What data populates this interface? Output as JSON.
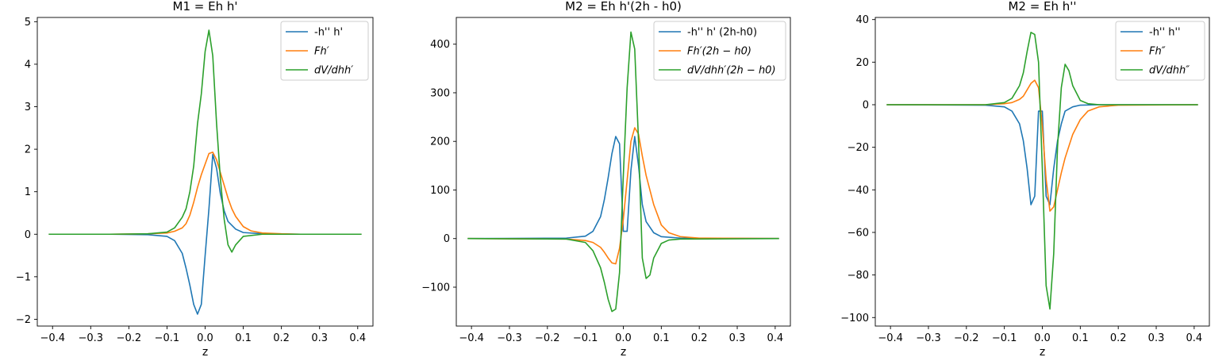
{
  "colors": {
    "series1": "#1f77b4",
    "series2": "#ff7f0e",
    "series3": "#2ca02c"
  },
  "chart_data": [
    {
      "type": "line",
      "title": "M1 = Eh h'",
      "xlabel": "z",
      "ylabel": "",
      "xlim": [
        -0.44,
        0.44
      ],
      "ylim": [
        -2.16,
        5.1
      ],
      "xticks": [
        -0.4,
        -0.3,
        -0.2,
        -0.1,
        0.0,
        0.1,
        0.2,
        0.3,
        0.4
      ],
      "xtick_labels": [
        "−0.4",
        "−0.3",
        "−0.2",
        "−0.1",
        "0.0",
        "0.1",
        "0.2",
        "0.3",
        "0.4"
      ],
      "yticks": [
        -2,
        -1,
        0,
        1,
        2,
        3,
        4,
        5
      ],
      "ytick_labels": [
        "−2",
        "−1",
        "0",
        "1",
        "2",
        "3",
        "4",
        "5"
      ],
      "legend_position": "top-right",
      "series": [
        {
          "name": "-h'' h'",
          "label_style": "plain",
          "x": [
            -0.41,
            -0.25,
            -0.15,
            -0.1,
            -0.08,
            -0.06,
            -0.05,
            -0.04,
            -0.03,
            -0.02,
            -0.01,
            0.0,
            0.01,
            0.02,
            0.03,
            0.04,
            0.05,
            0.06,
            0.08,
            0.1,
            0.15,
            0.25,
            0.41
          ],
          "y": [
            0,
            0,
            -0.01,
            -0.05,
            -0.15,
            -0.45,
            -0.8,
            -1.2,
            -1.65,
            -1.88,
            -1.65,
            -0.5,
            0.6,
            1.88,
            1.55,
            0.95,
            0.55,
            0.3,
            0.12,
            0.04,
            0.01,
            0,
            0
          ]
        },
        {
          "name": "Fh′",
          "label_style": "math",
          "x": [
            -0.41,
            -0.25,
            -0.15,
            -0.1,
            -0.08,
            -0.06,
            -0.05,
            -0.04,
            -0.03,
            -0.02,
            -0.01,
            0.0,
            0.01,
            0.02,
            0.03,
            0.04,
            0.05,
            0.06,
            0.07,
            0.08,
            0.1,
            0.12,
            0.15,
            0.2,
            0.25,
            0.41
          ],
          "y": [
            0,
            0,
            0.01,
            0.03,
            0.07,
            0.15,
            0.25,
            0.45,
            0.75,
            1.1,
            1.4,
            1.65,
            1.9,
            1.93,
            1.75,
            1.45,
            1.15,
            0.85,
            0.6,
            0.42,
            0.18,
            0.08,
            0.03,
            0.01,
            0,
            0
          ]
        },
        {
          "name": "dV/dhh′",
          "label_style": "math",
          "x": [
            -0.41,
            -0.25,
            -0.15,
            -0.1,
            -0.08,
            -0.06,
            -0.05,
            -0.04,
            -0.03,
            -0.02,
            -0.01,
            0.0,
            0.01,
            0.02,
            0.03,
            0.04,
            0.05,
            0.06,
            0.07,
            0.08,
            0.1,
            0.15,
            0.25,
            0.41
          ],
          "y": [
            0,
            0,
            0.01,
            0.05,
            0.15,
            0.4,
            0.6,
            1.0,
            1.6,
            2.6,
            3.3,
            4.3,
            4.8,
            4.2,
            2.6,
            1.3,
            0.35,
            -0.25,
            -0.42,
            -0.25,
            -0.05,
            0,
            0,
            0
          ]
        }
      ]
    },
    {
      "type": "line",
      "title": "M2 = Eh h'(2h - h0)",
      "xlabel": "z",
      "ylabel": "",
      "xlim": [
        -0.44,
        0.44
      ],
      "ylim": [
        -180,
        455
      ],
      "xticks": [
        -0.4,
        -0.3,
        -0.2,
        -0.1,
        0.0,
        0.1,
        0.2,
        0.3,
        0.4
      ],
      "xtick_labels": [
        "−0.4",
        "−0.3",
        "−0.2",
        "−0.1",
        "0.0",
        "0.1",
        "0.2",
        "0.3",
        "0.4"
      ],
      "yticks": [
        -100,
        0,
        100,
        200,
        300,
        400
      ],
      "ytick_labels": [
        "−100",
        "0",
        "100",
        "200",
        "300",
        "400"
      ],
      "legend_position": "top-right",
      "series": [
        {
          "name": "-h'' h' (2h-h0)",
          "label_style": "plain",
          "x": [
            -0.41,
            -0.15,
            -0.1,
            -0.08,
            -0.06,
            -0.05,
            -0.04,
            -0.03,
            -0.02,
            -0.01,
            0.0,
            0.01,
            0.02,
            0.03,
            0.04,
            0.05,
            0.06,
            0.08,
            0.1,
            0.15,
            0.41
          ],
          "y": [
            0,
            1,
            5,
            15,
            45,
            80,
            125,
            175,
            210,
            195,
            15,
            15,
            140,
            210,
            150,
            70,
            35,
            12,
            4,
            1,
            0
          ]
        },
        {
          "name": "Fh′(2h − h0)",
          "label_style": "math",
          "x": [
            -0.41,
            -0.15,
            -0.1,
            -0.08,
            -0.06,
            -0.05,
            -0.04,
            -0.03,
            -0.02,
            -0.01,
            0.0,
            0.01,
            0.02,
            0.03,
            0.04,
            0.05,
            0.06,
            0.08,
            0.1,
            0.12,
            0.15,
            0.2,
            0.41
          ],
          "y": [
            0,
            -1,
            -4,
            -8,
            -18,
            -28,
            -40,
            -50,
            -52,
            -20,
            40,
            120,
            200,
            228,
            215,
            170,
            130,
            70,
            28,
            12,
            4,
            1,
            0
          ]
        },
        {
          "name": "dV/dhh′(2h − h0)",
          "label_style": "math",
          "x": [
            -0.41,
            -0.15,
            -0.1,
            -0.08,
            -0.06,
            -0.05,
            -0.04,
            -0.03,
            -0.02,
            -0.01,
            0.0,
            0.01,
            0.02,
            0.03,
            0.04,
            0.05,
            0.06,
            0.07,
            0.08,
            0.1,
            0.12,
            0.15,
            0.41
          ],
          "y": [
            0,
            -1,
            -8,
            -25,
            -60,
            -90,
            -125,
            -150,
            -145,
            -70,
            130,
            310,
            425,
            390,
            200,
            -40,
            -82,
            -75,
            -40,
            -10,
            -3,
            -1,
            0
          ]
        }
      ]
    },
    {
      "type": "line",
      "title": "M2 = Eh h''",
      "xlabel": "z",
      "ylabel": "",
      "xlim": [
        -0.44,
        0.44
      ],
      "ylim": [
        -104,
        41
      ],
      "xticks": [
        -0.4,
        -0.3,
        -0.2,
        -0.1,
        0.0,
        0.1,
        0.2,
        0.3,
        0.4
      ],
      "xtick_labels": [
        "−0.4",
        "−0.3",
        "−0.2",
        "−0.1",
        "0.0",
        "0.1",
        "0.2",
        "0.3",
        "0.4"
      ],
      "yticks": [
        -100,
        -80,
        -60,
        -40,
        -20,
        0,
        20,
        40
      ],
      "ytick_labels": [
        "−100",
        "−80",
        "−60",
        "−40",
        "−20",
        "0",
        "20",
        "40"
      ],
      "legend_position": "top-right",
      "series": [
        {
          "name": "-h'' h''",
          "label_style": "plain",
          "x": [
            -0.41,
            -0.15,
            -0.1,
            -0.08,
            -0.06,
            -0.05,
            -0.04,
            -0.03,
            -0.02,
            -0.01,
            0.0,
            0.01,
            0.02,
            0.03,
            0.04,
            0.05,
            0.06,
            0.08,
            0.1,
            0.15,
            0.41
          ],
          "y": [
            0,
            -0.2,
            -1,
            -3,
            -9,
            -17,
            -30,
            -47,
            -43,
            -3,
            -3,
            -43,
            -47,
            -30,
            -17,
            -9,
            -3,
            -1,
            -0.2,
            0,
            0
          ]
        },
        {
          "name": "Fh″",
          "label_style": "math",
          "x": [
            -0.41,
            -0.15,
            -0.1,
            -0.08,
            -0.06,
            -0.05,
            -0.04,
            -0.03,
            -0.02,
            -0.01,
            0.0,
            0.01,
            0.02,
            0.03,
            0.04,
            0.05,
            0.06,
            0.08,
            0.1,
            0.12,
            0.15,
            0.2,
            0.41
          ],
          "y": [
            0,
            0,
            0.5,
            1,
            2.5,
            4,
            7,
            10,
            11.5,
            8,
            -10,
            -35,
            -50,
            -48,
            -40,
            -32,
            -25,
            -14,
            -7,
            -3,
            -1,
            -0.2,
            0
          ]
        },
        {
          "name": "dV/dhh″",
          "label_style": "math",
          "x": [
            -0.41,
            -0.15,
            -0.1,
            -0.08,
            -0.06,
            -0.05,
            -0.04,
            -0.03,
            -0.02,
            -0.01,
            0.0,
            0.01,
            0.02,
            0.03,
            0.04,
            0.05,
            0.06,
            0.07,
            0.08,
            0.1,
            0.12,
            0.15,
            0.41
          ],
          "y": [
            0,
            0,
            1,
            3,
            9,
            15,
            25,
            34,
            33,
            20,
            -30,
            -85,
            -96,
            -70,
            -20,
            8,
            19,
            16,
            9,
            2,
            0.5,
            0,
            0
          ]
        }
      ]
    }
  ]
}
